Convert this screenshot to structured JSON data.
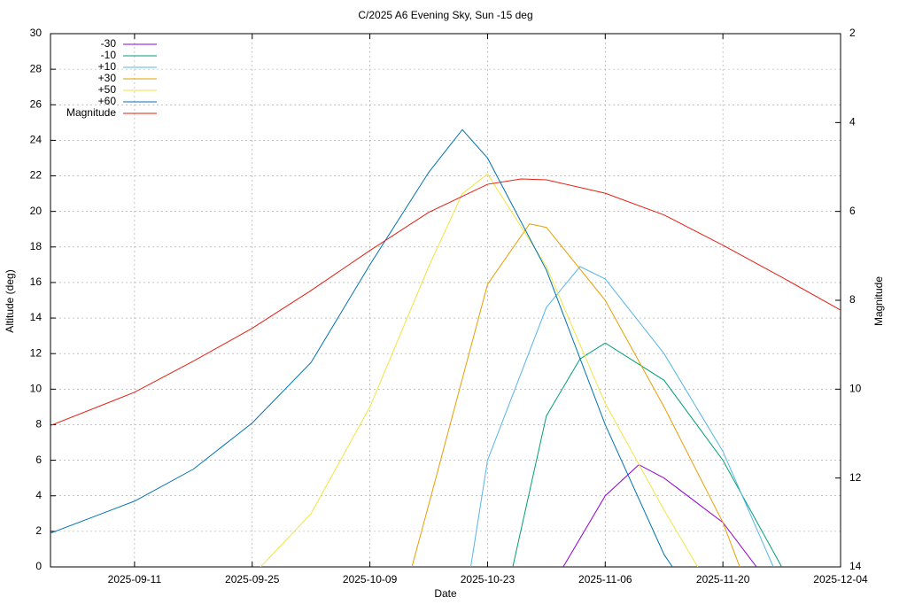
{
  "chart_data": {
    "type": "line",
    "title": "C/2025 A6 Evening Sky, Sun -15 deg",
    "x_label": "Date",
    "y_label": "Altitude (deg)",
    "y2_label": "Magnitude",
    "xlim": [
      "2025-09-01",
      "2025-12-04"
    ],
    "xticks": [
      "2025-09-11",
      "2025-09-25",
      "2025-10-09",
      "2025-10-23",
      "2025-11-06",
      "2025-11-20",
      "2025-12-04"
    ],
    "ylim": [
      0,
      30
    ],
    "yticks": [
      0,
      2,
      4,
      6,
      8,
      10,
      12,
      14,
      16,
      18,
      20,
      22,
      24,
      26,
      28,
      30
    ],
    "y2lim": [
      14,
      2
    ],
    "y2ticks": [
      2,
      4,
      6,
      8,
      10,
      12,
      14
    ],
    "grid": true,
    "legend": "top-left",
    "series": [
      {
        "name": "-30",
        "color": "#9400d3",
        "x": [
          "2025-11-01",
          "2025-11-06",
          "2025-11-10",
          "2025-11-13",
          "2025-11-20",
          "2025-11-24"
        ],
        "values": [
          0,
          4.0,
          5.75,
          5.0,
          2.5,
          0
        ]
      },
      {
        "name": "-10",
        "color": "#009e73",
        "x": [
          "2025-10-26",
          "2025-10-30",
          "2025-11-03",
          "2025-11-06",
          "2025-11-13",
          "2025-11-20",
          "2025-11-27"
        ],
        "values": [
          0,
          8.5,
          11.7,
          12.6,
          10.5,
          6.0,
          0
        ]
      },
      {
        "name": "+10",
        "color": "#56b4e9",
        "x": [
          "2025-10-21",
          "2025-10-23",
          "2025-10-30",
          "2025-11-03",
          "2025-11-06",
          "2025-11-13",
          "2025-11-20",
          "2025-11-26"
        ],
        "values": [
          0,
          6.0,
          14.6,
          16.9,
          16.2,
          12.0,
          6.5,
          0
        ]
      },
      {
        "name": "+30",
        "color": "#e69f00",
        "x": [
          "2025-10-14",
          "2025-10-16",
          "2025-10-23",
          "2025-10-28",
          "2025-10-30",
          "2025-11-06",
          "2025-11-13",
          "2025-11-20",
          "2025-11-22"
        ],
        "values": [
          0,
          3.5,
          15.9,
          19.3,
          19.1,
          15.0,
          9.0,
          2.5,
          0
        ]
      },
      {
        "name": "+50",
        "color": "#f0e442",
        "x": [
          "2025-09-26",
          "2025-10-02",
          "2025-10-09",
          "2025-10-16",
          "2025-10-20",
          "2025-10-23",
          "2025-10-30",
          "2025-11-06",
          "2025-11-13",
          "2025-11-17"
        ],
        "values": [
          0,
          3.0,
          9.0,
          16.9,
          21.0,
          22.1,
          16.9,
          9.2,
          3.2,
          0
        ]
      },
      {
        "name": "+60",
        "color": "#0072b2",
        "x": [
          "2025-09-01",
          "2025-09-11",
          "2025-09-18",
          "2025-09-25",
          "2025-10-02",
          "2025-10-09",
          "2025-10-16",
          "2025-10-20",
          "2025-10-23",
          "2025-10-30",
          "2025-11-06",
          "2025-11-13",
          "2025-11-14"
        ],
        "values": [
          1.9,
          3.7,
          5.5,
          8.1,
          11.5,
          17.0,
          22.2,
          24.6,
          23.0,
          16.7,
          8.0,
          0.7,
          0
        ]
      },
      {
        "name": "Magnitude",
        "color": "#e51e10",
        "axis": "y2",
        "x": [
          "2025-09-01",
          "2025-09-11",
          "2025-09-18",
          "2025-09-25",
          "2025-10-02",
          "2025-10-09",
          "2025-10-16",
          "2025-10-23",
          "2025-10-27",
          "2025-10-30",
          "2025-11-06",
          "2025-11-13",
          "2025-11-20",
          "2025-11-27",
          "2025-12-04"
        ],
        "values": [
          10.82,
          10.07,
          9.37,
          8.63,
          7.78,
          6.88,
          6.02,
          5.39,
          5.27,
          5.29,
          5.59,
          6.08,
          6.76,
          7.48,
          8.22
        ]
      }
    ]
  }
}
